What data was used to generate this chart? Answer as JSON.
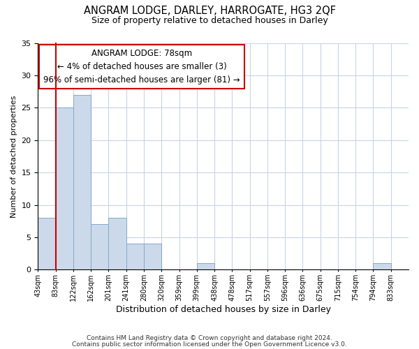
{
  "title": "ANGRAM LODGE, DARLEY, HARROGATE, HG3 2QF",
  "subtitle": "Size of property relative to detached houses in Darley",
  "xlabel": "Distribution of detached houses by size in Darley",
  "ylabel": "Number of detached properties",
  "bar_labels": [
    "43sqm",
    "83sqm",
    "122sqm",
    "162sqm",
    "201sqm",
    "241sqm",
    "280sqm",
    "320sqm",
    "359sqm",
    "399sqm",
    "438sqm",
    "478sqm",
    "517sqm",
    "557sqm",
    "596sqm",
    "636sqm",
    "675sqm",
    "715sqm",
    "754sqm",
    "794sqm",
    "833sqm"
  ],
  "bar_values": [
    8,
    25,
    27,
    7,
    8,
    4,
    4,
    0,
    0,
    1,
    0,
    0,
    0,
    0,
    0,
    0,
    0,
    0,
    0,
    1,
    0
  ],
  "bar_color": "#ccd9ea",
  "bar_edge_color": "#7faacc",
  "annotation_title": "ANGRAM LODGE: 78sqm",
  "annotation_line1": "← 4% of detached houses are smaller (3)",
  "annotation_line2": "96% of semi-detached houses are larger (81) →",
  "annotation_box_facecolor": "#ffffff",
  "annotation_box_edgecolor": "#cc0000",
  "vline_color": "#cc0000",
  "ylim": [
    0,
    35
  ],
  "yticks": [
    0,
    5,
    10,
    15,
    20,
    25,
    30,
    35
  ],
  "footer1": "Contains HM Land Registry data © Crown copyright and database right 2024.",
  "footer2": "Contains public sector information licensed under the Open Government Licence v3.0.",
  "bg_color": "#ffffff",
  "grid_color": "#c8d4e8"
}
